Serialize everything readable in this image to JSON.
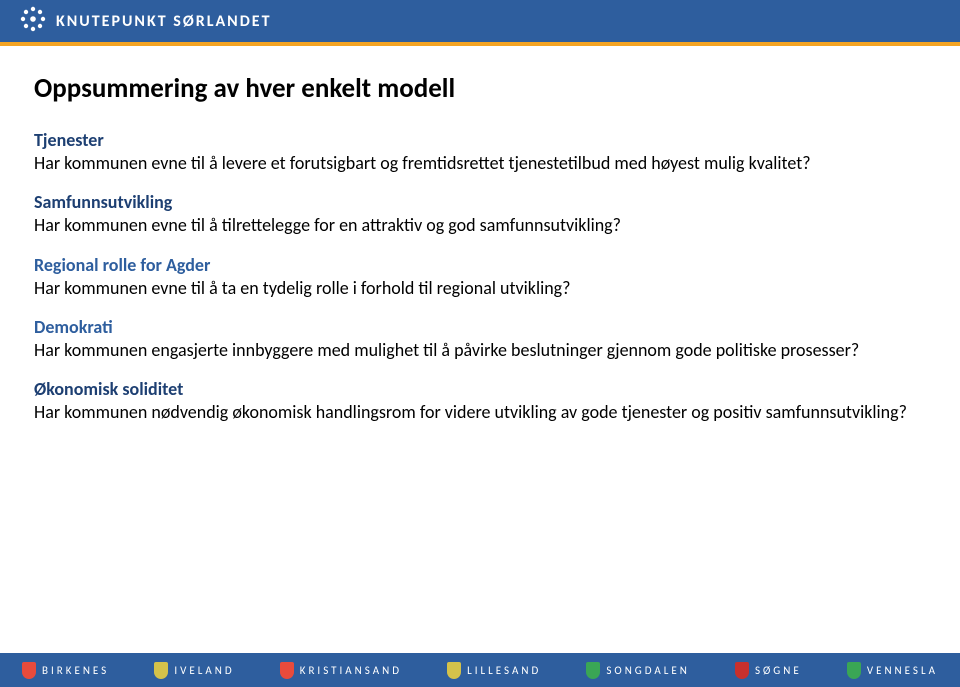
{
  "colors": {
    "header_bg": "#2e5e9e",
    "divider": "#f4a423",
    "footer_bg": "#2e5e9e",
    "heading_strong": "#1d3f72",
    "heading_alt": "#2e5e9e"
  },
  "header": {
    "brand": "KNUTEPUNKT SØRLANDET"
  },
  "title": "Oppsummering av hver enkelt modell",
  "sections": [
    {
      "heading": "Tjenester",
      "color_key": "heading_strong",
      "body": "Har kommunen evne til å levere et forutsigbart og fremtidsrettet tjenestetilbud med høyest mulig kvalitet?"
    },
    {
      "heading": "Samfunnsutvikling",
      "color_key": "heading_strong",
      "body": "Har kommunen evne til å tilrettelegge for en attraktiv og god samfunnsutvikling?"
    },
    {
      "heading": "Regional rolle for Agder",
      "color_key": "heading_alt",
      "body": "Har kommunen evne til å ta en tydelig rolle i forhold til regional utvikling?"
    },
    {
      "heading": "Demokrati",
      "color_key": "heading_alt",
      "body": "Har kommunen engasjerte innbyggere med mulighet til å påvirke beslutninger gjennom gode politiske prosesser?"
    },
    {
      "heading": "Økonomisk soliditet",
      "color_key": "heading_strong",
      "body": "Har kommunen nødvendig økonomisk handlingsrom for videre utvikling av gode tjenester og positiv samfunnsutvikling?"
    }
  ],
  "footer": {
    "items": [
      {
        "label": "BIRKENES",
        "crest_color": "#e84b3c"
      },
      {
        "label": "IVELAND",
        "crest_color": "#d4c24a"
      },
      {
        "label": "KRISTIANSAND",
        "crest_color": "#e84b3c"
      },
      {
        "label": "LILLESAND",
        "crest_color": "#d4c24a"
      },
      {
        "label": "SONGDALEN",
        "crest_color": "#3aa655"
      },
      {
        "label": "SØGNE",
        "crest_color": "#c9302c"
      },
      {
        "label": "VENNESLA",
        "crest_color": "#3aa655"
      }
    ]
  }
}
